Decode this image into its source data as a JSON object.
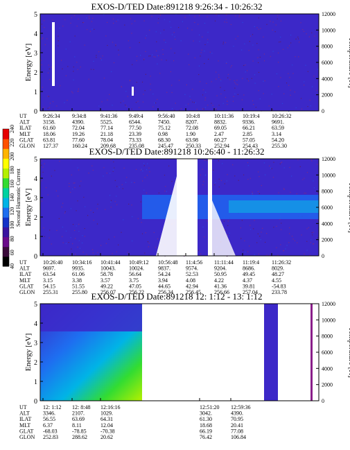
{
  "figure": {
    "colorbar": {
      "label": "Second Harmonic Current",
      "ticks": [
        "40",
        "60",
        "80",
        "100",
        "120",
        "140",
        "160",
        "180",
        "200",
        "220",
        "240"
      ],
      "colors": [
        "#000000",
        "#3a0a3a",
        "#6a0a8a",
        "#3a14a0",
        "#1432c8",
        "#1e6ef0",
        "#00b4e6",
        "#00d2a0",
        "#32dc32",
        "#b4f000",
        "#ffff00",
        "#ffb400",
        "#ff5000",
        "#e60000"
      ]
    },
    "row_labels": [
      "UT",
      "ALT",
      "ILAT",
      "MLT",
      "GLAT",
      "GLON"
    ]
  },
  "chart_data": [
    {
      "type": "heatmap",
      "title": "EXOS-D/TED    Date:891218   9:26:34 - 10:26:32",
      "ylabel": "Energy [eV]",
      "y2label": "Temperature [K]",
      "ylim": [
        0,
        5
      ],
      "y2lim": [
        0,
        12000
      ],
      "yticks": [
        "0",
        "1",
        "2",
        "3",
        "4",
        "5"
      ],
      "y2ticks": [
        "0",
        "2000",
        "4000",
        "6000",
        "8000",
        "10000",
        "12000"
      ],
      "background": "#3c28c8",
      "columns": [
        {
          "UT": "9:26:34",
          "ALT": "3158.",
          "ILAT": "61.60",
          "MLT": "18.06",
          "GLAT": "63.81",
          "GLON": "127.37"
        },
        {
          "UT": "9:34:8",
          "ALT": "4390.",
          "ILAT": "72.04",
          "MLT": "19.26",
          "GLAT": "77.60",
          "GLON": "160.24"
        },
        {
          "UT": "9:41:36",
          "ALT": "5525.",
          "ILAT": "77.14",
          "MLT": "21.18",
          "GLAT": "78.04",
          "GLON": "209.68"
        },
        {
          "UT": "9:49:4",
          "ALT": "6544.",
          "ILAT": "77.50",
          "MLT": "23.39",
          "GLAT": "73.33",
          "GLON": "235.08"
        },
        {
          "UT": "9:56:40",
          "ALT": "7450.",
          "ILAT": "75.12",
          "MLT": "0.98",
          "GLAT": "68.30",
          "GLON": "245.47"
        },
        {
          "UT": "10:4:8",
          "ALT": "8207.",
          "ILAT": "72.08",
          "MLT": "1.90",
          "GLAT": "63.98",
          "GLON": "250.33"
        },
        {
          "UT": "10:11:36",
          "ALT": "8832.",
          "ILAT": "69.05",
          "MLT": "2.47",
          "GLAT": "60.27",
          "GLON": "252.94"
        },
        {
          "UT": "10:19:4",
          "ALT": "9336.",
          "ILAT": "66.21",
          "MLT": "2.85",
          "GLAT": "57.05",
          "GLON": "254.43"
        },
        {
          "UT": "10:26:32",
          "ALT": "9691.",
          "ILAT": "63.59",
          "MLT": "3.14",
          "GLAT": "54.20",
          "GLON": "255.30"
        }
      ]
    },
    {
      "type": "heatmap",
      "title": "EXOS-D/TED   Date:891218   10:26:40 - 11:26:32",
      "ylabel": "Energy [eV]",
      "y2label": "Temperature [K]",
      "ylim": [
        0,
        5
      ],
      "y2lim": [
        0,
        12000
      ],
      "yticks": [
        "0",
        "1",
        "2",
        "3",
        "4",
        "5"
      ],
      "y2ticks": [
        "0",
        "2000",
        "4000",
        "6000",
        "8000",
        "10000",
        "12000"
      ],
      "background": "#3c28c8",
      "columns": [
        {
          "UT": "10:26:40",
          "ALT": "9697.",
          "ILAT": "63.54",
          "MLT": "3.15",
          "GLAT": "54.15",
          "GLON": "255.31"
        },
        {
          "UT": "10:34:16",
          "ALT": "9935.",
          "ILAT": "61.06",
          "MLT": "3.38",
          "GLAT": "51.55",
          "GLON": "255.80"
        },
        {
          "UT": "10:41:44",
          "ALT": "10043.",
          "ILAT": "58.78",
          "MLT": "3.57",
          "GLAT": "49.22",
          "GLON": "256.07"
        },
        {
          "UT": "10:49:12",
          "ALT": "10024.",
          "ILAT": "56.64",
          "MLT": "3.75",
          "GLAT": "47.05",
          "GLON": "256.22"
        },
        {
          "UT": "10:56:48",
          "ALT": "9837.",
          "ILAT": "54.24",
          "MLT": "3.94",
          "GLAT": "44.65",
          "GLON": "256.34"
        },
        {
          "UT": "11:4:56",
          "ALT": "9574.",
          "ILAT": "52.53",
          "MLT": "4.08",
          "GLAT": "42.94",
          "GLON": "256.45"
        },
        {
          "UT": "11:11:44",
          "ALT": "9204.",
          "ILAT": "50.95",
          "MLT": "4.22",
          "GLAT": "41.36",
          "GLON": "256.66"
        },
        {
          "UT": "11:19:4",
          "ALT": "8686.",
          "ILAT": "49.45",
          "MLT": "4.37",
          "GLAT": "39.81",
          "GLON": "257.04"
        },
        {
          "UT": "11:26:32",
          "ALT": "8029.",
          "ILAT": "48.27",
          "MLT": "4.55",
          "GLAT": "-54.83",
          "GLON": "233.78"
        }
      ]
    },
    {
      "type": "heatmap",
      "title": "EXOS-D/TED   Date:891218   12: 1:12 - 13: 1:12",
      "ylabel": "Energy [eV]",
      "y2label": "Temperature [K]",
      "ylim": [
        0,
        5
      ],
      "y2lim": [
        0,
        12000
      ],
      "yticks": [
        "0",
        "1",
        "2",
        "3",
        "4",
        "5"
      ],
      "y2ticks": [
        "0",
        "2000",
        "4000",
        "6000",
        "8000",
        "10000",
        "12000"
      ],
      "background": "#ffffff",
      "columns": [
        {
          "UT": "12: 1:12",
          "ALT": "3346.",
          "ILAT": "56.55",
          "MLT": "6.37",
          "GLAT": "-68.03",
          "GLON": "252.83"
        },
        {
          "UT": "12: 8:48",
          "ALT": "2107.",
          "ILAT": "63.69",
          "MLT": "8.11",
          "GLAT": "-78.85",
          "GLON": "288.62"
        },
        {
          "UT": "12:16:16",
          "ALT": "1029.",
          "ILAT": "64.31",
          "MLT": "12.04",
          "GLAT": "-70.38",
          "GLON": "20.62"
        },
        {
          "UT": "12:51:20",
          "ALT": "3042.",
          "ILAT": "61.30",
          "MLT": "18.68",
          "GLAT": "66.19",
          "GLON": "76.42"
        },
        {
          "UT": "12:59:36",
          "ALT": "4390.",
          "ILAT": "70.95",
          "MLT": "20.41",
          "GLAT": "77.08",
          "GLON": "106.84"
        }
      ]
    }
  ]
}
